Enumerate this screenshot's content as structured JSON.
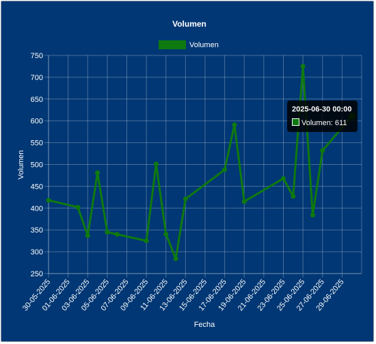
{
  "chart_data": {
    "type": "line",
    "title": "Volumen",
    "xlabel": "Fecha",
    "ylabel": "Volumen",
    "ylim": [
      250,
      750
    ],
    "yticks": [
      250,
      300,
      350,
      400,
      450,
      500,
      550,
      600,
      650,
      700,
      750
    ],
    "xticks": [
      "30-05-2025",
      "01-06-2025",
      "03-06-2025",
      "05-06-2025",
      "07-06-2025",
      "09-06-2025",
      "11-06-2025",
      "13-06-2025",
      "15-06-2025",
      "17-06-2025",
      "19-06-2025",
      "21-06-2025",
      "23-06-2025",
      "25-06-2025",
      "27-06-2025",
      "29-06-2025"
    ],
    "series": [
      {
        "name": "Volumen",
        "color": "#0f7a0f",
        "points": [
          {
            "x": "2025-05-30",
            "y": 418
          },
          {
            "x": "2025-06-02",
            "y": 402
          },
          {
            "x": "2025-06-03",
            "y": 337
          },
          {
            "x": "2025-06-04",
            "y": 481
          },
          {
            "x": "2025-06-05",
            "y": 345
          },
          {
            "x": "2025-06-06",
            "y": 340
          },
          {
            "x": "2025-06-09",
            "y": 325
          },
          {
            "x": "2025-06-10",
            "y": 501
          },
          {
            "x": "2025-06-11",
            "y": 340
          },
          {
            "x": "2025-06-12",
            "y": 284
          },
          {
            "x": "2025-06-13",
            "y": 421
          },
          {
            "x": "2025-06-17",
            "y": 488
          },
          {
            "x": "2025-06-18",
            "y": 591
          },
          {
            "x": "2025-06-19",
            "y": 415
          },
          {
            "x": "2025-06-23",
            "y": 468
          },
          {
            "x": "2025-06-24",
            "y": 427
          },
          {
            "x": "2025-06-25",
            "y": 725
          },
          {
            "x": "2025-06-26",
            "y": 384
          },
          {
            "x": "2025-06-27",
            "y": 532
          },
          {
            "x": "2025-06-30",
            "y": 611
          }
        ]
      }
    ],
    "legend": {
      "position": "top",
      "label": "Volumen"
    },
    "grid": true,
    "tooltip": {
      "title": "2025-06-30 00:00",
      "label": "Volumen: 611"
    }
  }
}
